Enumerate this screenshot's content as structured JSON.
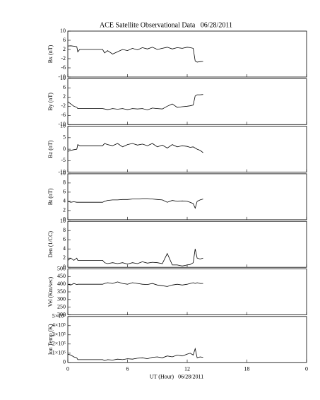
{
  "chart_data": [
    {
      "type": "line",
      "title": "ACE Satellite Observational Data   06/28/2011",
      "ylabel": "Bx (nT)",
      "ylim": [
        -10,
        10
      ],
      "yticks": [
        -10,
        -6,
        -2,
        2,
        6,
        10
      ],
      "x": [
        0,
        0.3,
        0.6,
        0.9,
        1.0,
        1.2,
        3.5,
        3.7,
        4,
        4.5,
        5,
        5.5,
        6,
        6.5,
        7,
        7.5,
        8,
        8.5,
        9,
        9.5,
        10,
        10.5,
        11,
        11.5,
        12,
        12.3,
        12.6,
        12.8,
        13,
        13.3,
        13.6
      ],
      "series": [
        {
          "color": "#000000",
          "values": [
            3.5,
            3.6,
            3.4,
            3.2,
            1,
            2,
            2,
            0.5,
            1.5,
            0,
            1,
            2,
            1.5,
            2.5,
            1.8,
            2.8,
            2.2,
            3,
            2,
            2.5,
            3,
            2.2,
            2.8,
            2.5,
            3,
            2.8,
            2.5,
            -3,
            -3.5,
            -3.3,
            -3.2
          ]
        }
      ]
    },
    {
      "type": "line",
      "ylabel": "By (nT)",
      "ylim": [
        -10,
        10
      ],
      "yticks": [
        -10,
        -6,
        -2,
        2,
        6,
        10
      ],
      "x": [
        0,
        0.3,
        0.6,
        0.9,
        1.0,
        1.2,
        3.5,
        3.7,
        4,
        4.5,
        5,
        5.5,
        6,
        6.5,
        7,
        7.5,
        8,
        8.5,
        9,
        9.5,
        10,
        10.5,
        11,
        11.5,
        12,
        12.3,
        12.6,
        12.8,
        13,
        13.3,
        13.6
      ],
      "series": [
        {
          "color": "#000000",
          "values": [
            0,
            -1,
            -2,
            -2.5,
            -3,
            -3,
            -3,
            -3.2,
            -3.5,
            -3,
            -3.3,
            -3,
            -3.5,
            -3,
            -3.2,
            -3,
            -3.6,
            -2.8,
            -3,
            -3.2,
            -2,
            -1,
            -2.5,
            -2.2,
            -2,
            -1.8,
            -1.5,
            2.5,
            3,
            3,
            3.1
          ]
        }
      ]
    },
    {
      "type": "line",
      "ylabel": "Bz (nT)",
      "ylim": [
        -10,
        10
      ],
      "yticks": [
        -10,
        -5,
        0,
        5,
        10
      ],
      "x": [
        0,
        0.3,
        0.6,
        0.9,
        1.0,
        1.2,
        3.5,
        3.7,
        4,
        4.5,
        5,
        5.5,
        6,
        6.5,
        7,
        7.5,
        8,
        8.5,
        9,
        9.5,
        10,
        10.5,
        11,
        11.5,
        12,
        12.3,
        12.6,
        12.8,
        13,
        13.3,
        13.6
      ],
      "series": [
        {
          "color": "#000000",
          "values": [
            -1,
            -0.5,
            -0.2,
            0,
            2,
            1.5,
            1.5,
            2.5,
            2,
            1.5,
            2.5,
            1,
            2,
            2.5,
            1.8,
            2.2,
            1.5,
            2.5,
            1,
            1.8,
            0.5,
            2,
            1,
            1.5,
            1.2,
            0.8,
            1,
            0.5,
            0,
            -0.5,
            -1.5
          ]
        }
      ]
    },
    {
      "type": "line",
      "ylabel": "Bt (nT)",
      "ylim": [
        0,
        10
      ],
      "yticks": [
        0,
        2,
        4,
        6,
        8,
        10
      ],
      "x": [
        0,
        0.3,
        0.6,
        0.9,
        1.0,
        1.2,
        3.5,
        3.7,
        4,
        4.5,
        5,
        5.5,
        6,
        6.5,
        7,
        7.5,
        8,
        8.5,
        9,
        9.5,
        10,
        10.5,
        11,
        11.5,
        12,
        12.3,
        12.6,
        12.8,
        13,
        13.3,
        13.6
      ],
      "series": [
        {
          "color": "#000000",
          "values": [
            4,
            3.8,
            3.9,
            3.8,
            3.8,
            3.8,
            3.8,
            4,
            4.2,
            4.3,
            4.3,
            4.4,
            4.4,
            4.5,
            4.5,
            4.6,
            4.6,
            4.5,
            4.4,
            4.3,
            3.8,
            4.2,
            4.0,
            4.1,
            4.0,
            3.8,
            3.5,
            2.5,
            4,
            4.3,
            4.5
          ]
        }
      ]
    },
    {
      "type": "line",
      "ylabel": "Den (1/CC)",
      "ylim": [
        0,
        10
      ],
      "yticks": [
        0,
        2,
        4,
        6,
        8,
        10
      ],
      "x": [
        0,
        0.3,
        0.6,
        0.9,
        1.0,
        1.2,
        3.5,
        3.7,
        4,
        4.5,
        5,
        5.5,
        6,
        6.5,
        7,
        7.5,
        8,
        8.5,
        9,
        9.5,
        10,
        10.5,
        11,
        11.5,
        12,
        12.3,
        12.6,
        12.8,
        13,
        13.3,
        13.6
      ],
      "series": [
        {
          "color": "#000000",
          "values": [
            1.5,
            2,
            1.5,
            2,
            1.5,
            1.5,
            1.5,
            1,
            0.8,
            1,
            0.8,
            1,
            0.7,
            1,
            0.8,
            1.2,
            0.9,
            1.1,
            1,
            0.8,
            3,
            0.5,
            0.5,
            0.3,
            0.5,
            0.6,
            1,
            4,
            2,
            1.8,
            2
          ]
        }
      ]
    },
    {
      "type": "line",
      "ylabel": "Vel (Km/sec)",
      "ylim": [
        200,
        500
      ],
      "yticks": [
        200,
        250,
        300,
        350,
        400,
        450,
        500
      ],
      "x": [
        0,
        0.3,
        0.6,
        0.9,
        1.0,
        1.2,
        3.5,
        3.7,
        4,
        4.5,
        5,
        5.5,
        6,
        6.5,
        7,
        7.5,
        8,
        8.5,
        9,
        9.5,
        10,
        10.5,
        11,
        11.5,
        12,
        12.3,
        12.6,
        12.8,
        13,
        13.3,
        13.6
      ],
      "series": [
        {
          "color": "#000000",
          "values": [
            400,
            395,
            405,
            398,
            400,
            400,
            400,
            405,
            410,
            405,
            415,
            405,
            400,
            410,
            405,
            400,
            398,
            405,
            395,
            390,
            385,
            395,
            400,
            395,
            400,
            405,
            410,
            405,
            410,
            405,
            405
          ]
        }
      ]
    },
    {
      "type": "line",
      "ylabel": "Ion Temp (K)",
      "xlabel": "UT (Hour)   06/28/2011",
      "ylim": [
        0,
        500000
      ],
      "yticks": [
        0,
        {
          "value": 100000,
          "label": "1×10⁵"
        },
        {
          "value": 200000,
          "label": "2×10⁵"
        },
        {
          "value": 300000,
          "label": "3×10⁵"
        },
        {
          "value": 400000,
          "label": "4×10⁵"
        },
        {
          "value": 500000,
          "label": "5×10⁵"
        }
      ],
      "xlim": [
        0,
        24
      ],
      "xticks": [
        0,
        6,
        12,
        18,
        {
          "value": 24,
          "label": "0"
        }
      ],
      "x": [
        0,
        0.3,
        0.6,
        0.9,
        1.0,
        1.2,
        3.5,
        3.7,
        4,
        4.5,
        5,
        5.5,
        6,
        6.5,
        7,
        7.5,
        8,
        8.5,
        9,
        9.5,
        10,
        10.5,
        11,
        11.5,
        12,
        12.3,
        12.6,
        12.8,
        13,
        13.3,
        13.6
      ],
      "series": [
        {
          "color": "#000000",
          "values": [
            90000,
            80000,
            60000,
            50000,
            30000,
            30000,
            30000,
            20000,
            30000,
            25000,
            35000,
            30000,
            40000,
            35000,
            45000,
            50000,
            40000,
            55000,
            60000,
            50000,
            70000,
            60000,
            80000,
            70000,
            90000,
            100000,
            80000,
            150000,
            50000,
            60000,
            55000
          ]
        }
      ]
    }
  ]
}
